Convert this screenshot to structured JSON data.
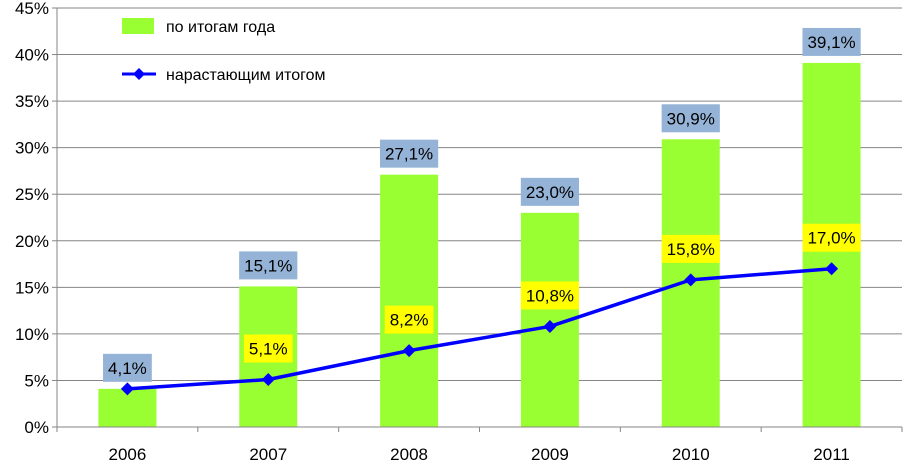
{
  "chart_data": {
    "type": "bar",
    "categories": [
      "2006",
      "2007",
      "2008",
      "2009",
      "2010",
      "2011"
    ],
    "series": [
      {
        "name": "по итогам года",
        "type": "bar",
        "color": "#99ff33",
        "label_bg": "#95b3d7",
        "values": [
          4.1,
          15.1,
          27.1,
          23.0,
          30.9,
          39.1
        ],
        "labels": [
          "4,1%",
          "15,1%",
          "27,1%",
          "23,0%",
          "30,9%",
          "39,1%"
        ]
      },
      {
        "name": "нарастающим итогом",
        "type": "line",
        "color": "#0000ff",
        "label_bg": "#ffff00",
        "values": [
          4.1,
          5.1,
          8.2,
          10.8,
          15.8,
          17.0
        ],
        "labels": [
          "",
          "5,1%",
          "8,2%",
          "10,8%",
          "15,8%",
          "17,0%"
        ]
      }
    ],
    "yticks": [
      "0%",
      "5%",
      "10%",
      "15%",
      "20%",
      "25%",
      "30%",
      "35%",
      "40%",
      "45%"
    ],
    "ylim": [
      0,
      45
    ],
    "grid": true,
    "legend": "top-left",
    "title": "",
    "xlabel": "",
    "ylabel": ""
  }
}
